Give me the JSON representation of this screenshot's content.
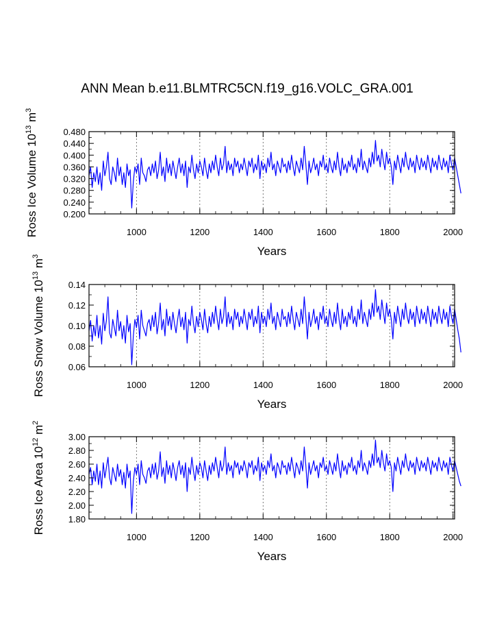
{
  "title": "ANN Mean b.e11.BLMTRC5CN.f19_g16.VOLC_GRA.001",
  "line_color": "#0000ff",
  "chart_data": [
    {
      "type": "line",
      "name": "ross-ice-volume",
      "ylabel": {
        "main": "Ross Ice Volume 10",
        "exp1": "13",
        "unit": " m",
        "exp2": "3"
      },
      "xlabel": "Years",
      "xlim": [
        850,
        2005
      ],
      "ylim": [
        0.2,
        0.48
      ],
      "xticks": [
        1000,
        1200,
        1400,
        1600,
        1800,
        2000
      ],
      "xtick_labels": [
        "1000",
        "1200",
        "1400",
        "1600",
        "1800",
        "2000"
      ],
      "yticks": [
        0.2,
        0.24,
        0.28,
        0.32,
        0.36,
        0.4,
        0.44,
        0.48
      ],
      "ytick_labels": [
        "0.200",
        "0.240",
        "0.280",
        "0.320",
        "0.360",
        "0.400",
        "0.440",
        "0.480"
      ],
      "grid": "dashed vertical at major x ticks",
      "series": [
        {
          "name": "annual mean",
          "x_start": 850,
          "x_step": 5,
          "values": [
            0.33,
            0.36,
            0.29,
            0.34,
            0.31,
            0.36,
            0.3,
            0.34,
            0.28,
            0.38,
            0.33,
            0.36,
            0.41,
            0.32,
            0.3,
            0.36,
            0.34,
            0.31,
            0.39,
            0.33,
            0.36,
            0.3,
            0.34,
            0.29,
            0.37,
            0.33,
            0.35,
            0.22,
            0.31,
            0.36,
            0.34,
            0.37,
            0.3,
            0.39,
            0.34,
            0.33,
            0.31,
            0.35,
            0.36,
            0.33,
            0.37,
            0.34,
            0.38,
            0.32,
            0.35,
            0.41,
            0.33,
            0.36,
            0.31,
            0.39,
            0.34,
            0.37,
            0.33,
            0.38,
            0.35,
            0.32,
            0.36,
            0.39,
            0.34,
            0.37,
            0.33,
            0.38,
            0.29,
            0.36,
            0.34,
            0.4,
            0.35,
            0.32,
            0.37,
            0.34,
            0.38,
            0.36,
            0.33,
            0.39,
            0.35,
            0.32,
            0.37,
            0.34,
            0.38,
            0.35,
            0.4,
            0.36,
            0.33,
            0.39,
            0.35,
            0.37,
            0.43,
            0.34,
            0.38,
            0.35,
            0.37,
            0.33,
            0.39,
            0.36,
            0.38,
            0.34,
            0.37,
            0.35,
            0.39,
            0.36,
            0.33,
            0.38,
            0.36,
            0.39,
            0.34,
            0.37,
            0.35,
            0.4,
            0.32,
            0.38,
            0.35,
            0.37,
            0.34,
            0.39,
            0.36,
            0.41,
            0.35,
            0.37,
            0.33,
            0.38,
            0.36,
            0.34,
            0.39,
            0.36,
            0.37,
            0.34,
            0.38,
            0.35,
            0.4,
            0.36,
            0.33,
            0.38,
            0.36,
            0.34,
            0.39,
            0.35,
            0.43,
            0.37,
            0.3,
            0.38,
            0.34,
            0.36,
            0.39,
            0.35,
            0.37,
            0.33,
            0.38,
            0.36,
            0.4,
            0.35,
            0.37,
            0.34,
            0.39,
            0.36,
            0.34,
            0.38,
            0.35,
            0.41,
            0.36,
            0.33,
            0.39,
            0.35,
            0.37,
            0.34,
            0.38,
            0.36,
            0.4,
            0.35,
            0.37,
            0.34,
            0.39,
            0.36,
            0.42,
            0.35,
            0.38,
            0.36,
            0.34,
            0.39,
            0.36,
            0.41,
            0.37,
            0.45,
            0.38,
            0.4,
            0.36,
            0.42,
            0.38,
            0.35,
            0.41,
            0.37,
            0.39,
            0.36,
            0.3,
            0.38,
            0.35,
            0.4,
            0.37,
            0.34,
            0.39,
            0.36,
            0.41,
            0.37,
            0.35,
            0.39,
            0.36,
            0.38,
            0.34,
            0.4,
            0.37,
            0.35,
            0.39,
            0.36,
            0.38,
            0.35,
            0.4,
            0.37,
            0.34,
            0.39,
            0.36,
            0.38,
            0.35,
            0.4,
            0.37,
            0.35,
            0.39,
            0.36,
            0.38,
            0.34,
            0.4,
            0.37,
            0.35,
            0.39,
            0.36,
            0.33,
            0.3,
            0.27
          ]
        }
      ]
    },
    {
      "type": "line",
      "name": "ross-snow-volume",
      "ylabel": {
        "main": "Ross Snow Volume 10",
        "exp1": "13",
        "unit": " m",
        "exp2": "3"
      },
      "xlabel": "Years",
      "xlim": [
        850,
        2005
      ],
      "ylim": [
        0.06,
        0.14
      ],
      "xticks": [
        1000,
        1200,
        1400,
        1600,
        1800,
        2000
      ],
      "xtick_labels": [
        "1000",
        "1200",
        "1400",
        "1600",
        "1800",
        "2000"
      ],
      "yticks": [
        0.06,
        0.08,
        0.1,
        0.12,
        0.14
      ],
      "ytick_labels": [
        "0.06",
        "0.08",
        "0.10",
        "0.12",
        "0.14"
      ],
      "grid": "dashed vertical at major x ticks",
      "series": [
        {
          "name": "annual mean",
          "x_start": 850,
          "x_step": 5,
          "values": [
            0.095,
            0.105,
            0.085,
            0.1,
            0.09,
            0.11,
            0.088,
            0.1,
            0.082,
            0.112,
            0.095,
            0.105,
            0.128,
            0.093,
            0.088,
            0.106,
            0.098,
            0.09,
            0.115,
            0.095,
            0.104,
            0.087,
            0.1,
            0.083,
            0.11,
            0.094,
            0.102,
            0.062,
            0.09,
            0.106,
            0.098,
            0.11,
            0.087,
            0.115,
            0.1,
            0.095,
            0.09,
            0.102,
            0.106,
            0.095,
            0.11,
            0.099,
            0.113,
            0.092,
            0.103,
            0.122,
            0.096,
            0.106,
            0.09,
            0.116,
            0.1,
            0.109,
            0.096,
            0.113,
            0.102,
            0.093,
            0.106,
            0.116,
            0.099,
            0.108,
            0.096,
            0.113,
            0.083,
            0.106,
            0.1,
            0.119,
            0.102,
            0.093,
            0.109,
            0.099,
            0.113,
            0.106,
            0.096,
            0.116,
            0.102,
            0.093,
            0.109,
            0.099,
            0.113,
            0.102,
            0.119,
            0.106,
            0.096,
            0.116,
            0.102,
            0.109,
            0.128,
            0.099,
            0.113,
            0.102,
            0.109,
            0.096,
            0.116,
            0.106,
            0.113,
            0.099,
            0.109,
            0.102,
            0.116,
            0.106,
            0.096,
            0.113,
            0.106,
            0.116,
            0.099,
            0.109,
            0.102,
            0.119,
            0.093,
            0.113,
            0.102,
            0.109,
            0.099,
            0.116,
            0.106,
            0.122,
            0.102,
            0.109,
            0.096,
            0.113,
            0.106,
            0.099,
            0.116,
            0.106,
            0.109,
            0.099,
            0.113,
            0.102,
            0.119,
            0.106,
            0.096,
            0.113,
            0.106,
            0.099,
            0.116,
            0.102,
            0.128,
            0.109,
            0.087,
            0.113,
            0.099,
            0.106,
            0.116,
            0.102,
            0.109,
            0.096,
            0.113,
            0.106,
            0.119,
            0.102,
            0.109,
            0.099,
            0.116,
            0.106,
            0.099,
            0.113,
            0.102,
            0.122,
            0.106,
            0.096,
            0.116,
            0.102,
            0.109,
            0.099,
            0.113,
            0.106,
            0.119,
            0.102,
            0.109,
            0.099,
            0.116,
            0.106,
            0.125,
            0.102,
            0.113,
            0.106,
            0.099,
            0.116,
            0.106,
            0.122,
            0.109,
            0.135,
            0.113,
            0.119,
            0.106,
            0.125,
            0.113,
            0.102,
            0.122,
            0.109,
            0.116,
            0.106,
            0.087,
            0.113,
            0.102,
            0.119,
            0.109,
            0.099,
            0.116,
            0.106,
            0.122,
            0.109,
            0.102,
            0.116,
            0.106,
            0.113,
            0.099,
            0.119,
            0.109,
            0.102,
            0.116,
            0.106,
            0.113,
            0.102,
            0.119,
            0.109,
            0.099,
            0.116,
            0.106,
            0.113,
            0.102,
            0.119,
            0.109,
            0.102,
            0.116,
            0.106,
            0.113,
            0.099,
            0.119,
            0.109,
            0.102,
            0.116,
            0.106,
            0.096,
            0.087,
            0.074
          ]
        }
      ]
    },
    {
      "type": "line",
      "name": "ross-ice-area",
      "ylabel": {
        "main": "Ross Ice Area 10",
        "exp1": "12",
        "unit": " m",
        "exp2": "2"
      },
      "xlabel": "Years",
      "xlim": [
        850,
        2005
      ],
      "ylim": [
        1.8,
        3.0
      ],
      "xticks": [
        1000,
        1200,
        1400,
        1600,
        1800,
        2000
      ],
      "xtick_labels": [
        "1000",
        "1200",
        "1400",
        "1600",
        "1800",
        "2000"
      ],
      "yticks": [
        1.8,
        2.0,
        2.2,
        2.4,
        2.6,
        2.8,
        3.0
      ],
      "ytick_labels": [
        "1.80",
        "2.00",
        "2.20",
        "2.40",
        "2.60",
        "2.80",
        "3.00"
      ],
      "grid": "dashed vertical at major x ticks",
      "series": [
        {
          "name": "annual mean",
          "x_start": 850,
          "x_step": 5,
          "values": [
            2.45,
            2.55,
            2.3,
            2.5,
            2.35,
            2.6,
            2.3,
            2.5,
            2.25,
            2.62,
            2.4,
            2.55,
            2.7,
            2.4,
            2.3,
            2.55,
            2.45,
            2.35,
            2.6,
            2.42,
            2.52,
            2.3,
            2.48,
            2.25,
            2.6,
            2.4,
            2.5,
            1.88,
            2.35,
            2.55,
            2.45,
            2.6,
            2.3,
            2.65,
            2.45,
            2.4,
            2.32,
            2.5,
            2.55,
            2.4,
            2.6,
            2.45,
            2.62,
            2.38,
            2.5,
            2.78,
            2.42,
            2.55,
            2.32,
            2.65,
            2.45,
            2.58,
            2.4,
            2.62,
            2.5,
            2.36,
            2.55,
            2.65,
            2.45,
            2.58,
            2.4,
            2.62,
            2.2,
            2.55,
            2.45,
            2.7,
            2.5,
            2.36,
            2.58,
            2.45,
            2.62,
            2.55,
            2.4,
            2.65,
            2.5,
            2.36,
            2.58,
            2.45,
            2.62,
            2.5,
            2.7,
            2.55,
            2.4,
            2.65,
            2.5,
            2.58,
            2.85,
            2.45,
            2.62,
            2.5,
            2.58,
            2.4,
            2.65,
            2.55,
            2.62,
            2.45,
            2.58,
            2.5,
            2.65,
            2.55,
            2.4,
            2.62,
            2.55,
            2.65,
            2.45,
            2.58,
            2.5,
            2.7,
            2.36,
            2.62,
            2.5,
            2.58,
            2.45,
            2.65,
            2.55,
            2.75,
            2.5,
            2.58,
            2.4,
            2.62,
            2.55,
            2.45,
            2.65,
            2.55,
            2.58,
            2.45,
            2.62,
            2.5,
            2.7,
            2.55,
            2.4,
            2.62,
            2.55,
            2.45,
            2.65,
            2.5,
            2.85,
            2.58,
            2.25,
            2.62,
            2.45,
            2.55,
            2.65,
            2.5,
            2.58,
            2.4,
            2.62,
            2.55,
            2.7,
            2.5,
            2.58,
            2.45,
            2.65,
            2.55,
            2.45,
            2.62,
            2.5,
            2.75,
            2.55,
            2.4,
            2.65,
            2.5,
            2.58,
            2.45,
            2.62,
            2.55,
            2.7,
            2.5,
            2.58,
            2.45,
            2.65,
            2.55,
            2.8,
            2.5,
            2.62,
            2.55,
            2.45,
            2.65,
            2.55,
            2.75,
            2.58,
            2.95,
            2.62,
            2.7,
            2.55,
            2.8,
            2.62,
            2.5,
            2.75,
            2.58,
            2.65,
            2.55,
            2.2,
            2.62,
            2.5,
            2.7,
            2.58,
            2.45,
            2.65,
            2.55,
            2.75,
            2.58,
            2.5,
            2.65,
            2.55,
            2.62,
            2.45,
            2.7,
            2.58,
            2.5,
            2.65,
            2.55,
            2.62,
            2.5,
            2.7,
            2.58,
            2.45,
            2.65,
            2.55,
            2.62,
            2.5,
            2.7,
            2.58,
            2.5,
            2.65,
            2.55,
            2.62,
            2.45,
            2.7,
            2.58,
            2.5,
            2.65,
            2.55,
            2.45,
            2.35,
            2.28
          ]
        }
      ]
    }
  ]
}
